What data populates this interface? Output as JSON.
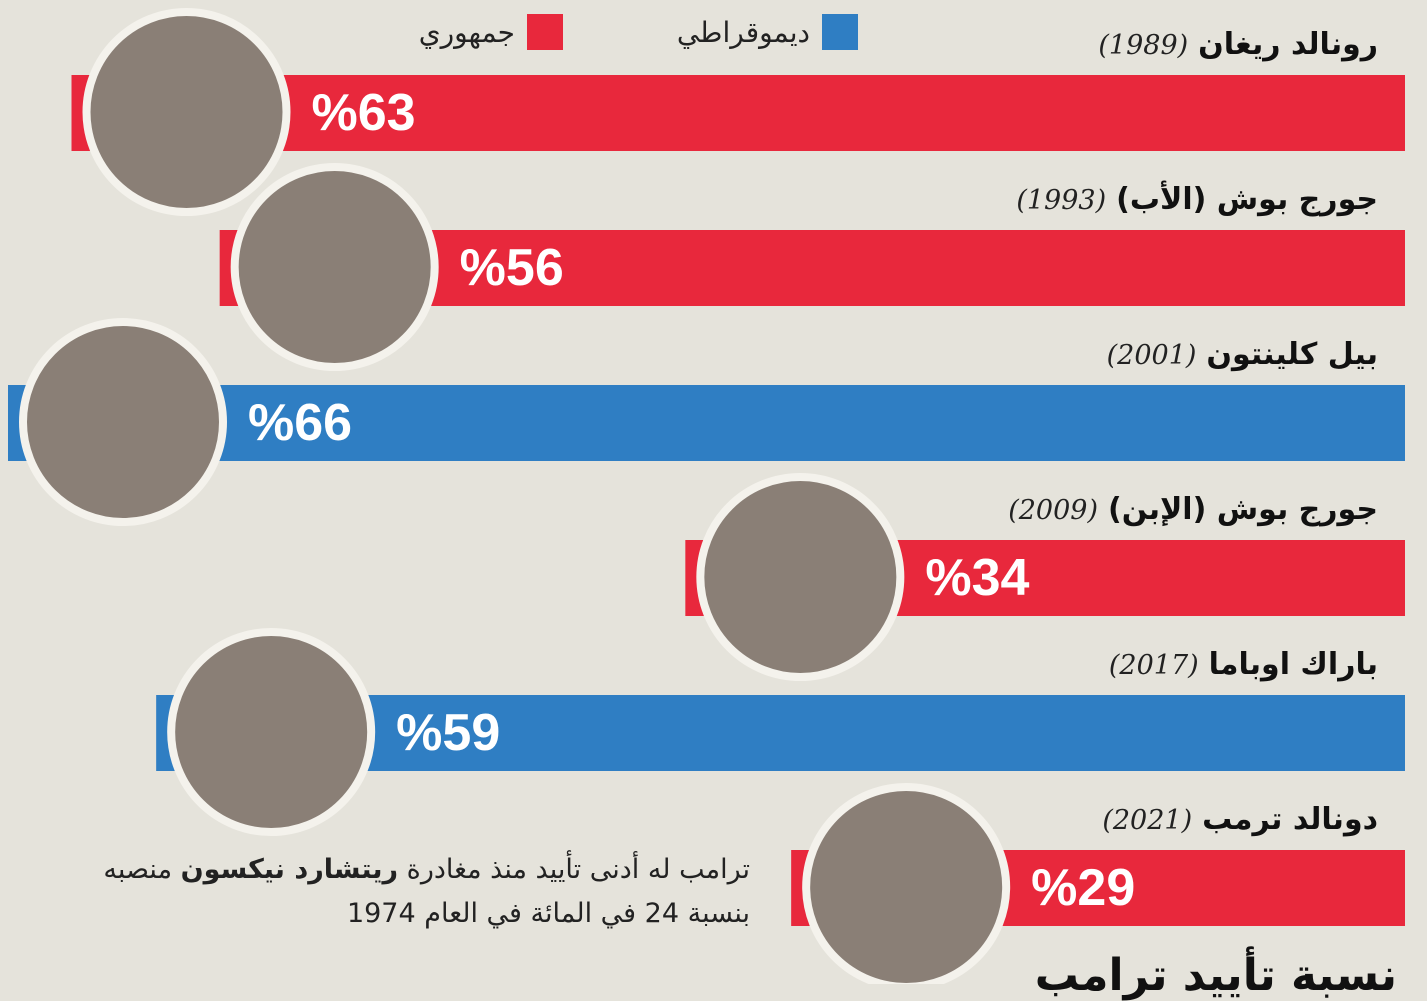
{
  "chart_data": {
    "type": "bar",
    "orientation": "horizontal",
    "bar_align": "right",
    "title": "نسبة تأييد ترامب",
    "categories": [
      "رونالد ريغان",
      "جورج بوش (الأب)",
      "بيل كلينتون",
      "جورج بوش (الإبن)",
      "باراك اوباما",
      "دونالد ترمب"
    ],
    "years": [
      "(1989)",
      "(1993)",
      "(2001)",
      "(2009)",
      "(2017)",
      "(2021)"
    ],
    "series": [
      {
        "name": "ديموقراطي",
        "color": "#2f7ec3",
        "values": [
          null,
          null,
          66,
          null,
          59,
          null
        ],
        "value_labels": [
          null,
          null,
          "%66",
          null,
          "%59",
          null
        ]
      },
      {
        "name": "جمهوري",
        "color": "#e8283c",
        "values": [
          63,
          56,
          null,
          34,
          null,
          29
        ],
        "value_labels": [
          "%63",
          "%56",
          null,
          "%34",
          null,
          "%29"
        ]
      }
    ],
    "annotation": [
      "ترامب له أدنى تأييد منذ مغادرة",
      "ريتشارد نيكسون",
      "منصبه",
      "بنسبة 24 في المائة في العام 1974"
    ]
  }
}
